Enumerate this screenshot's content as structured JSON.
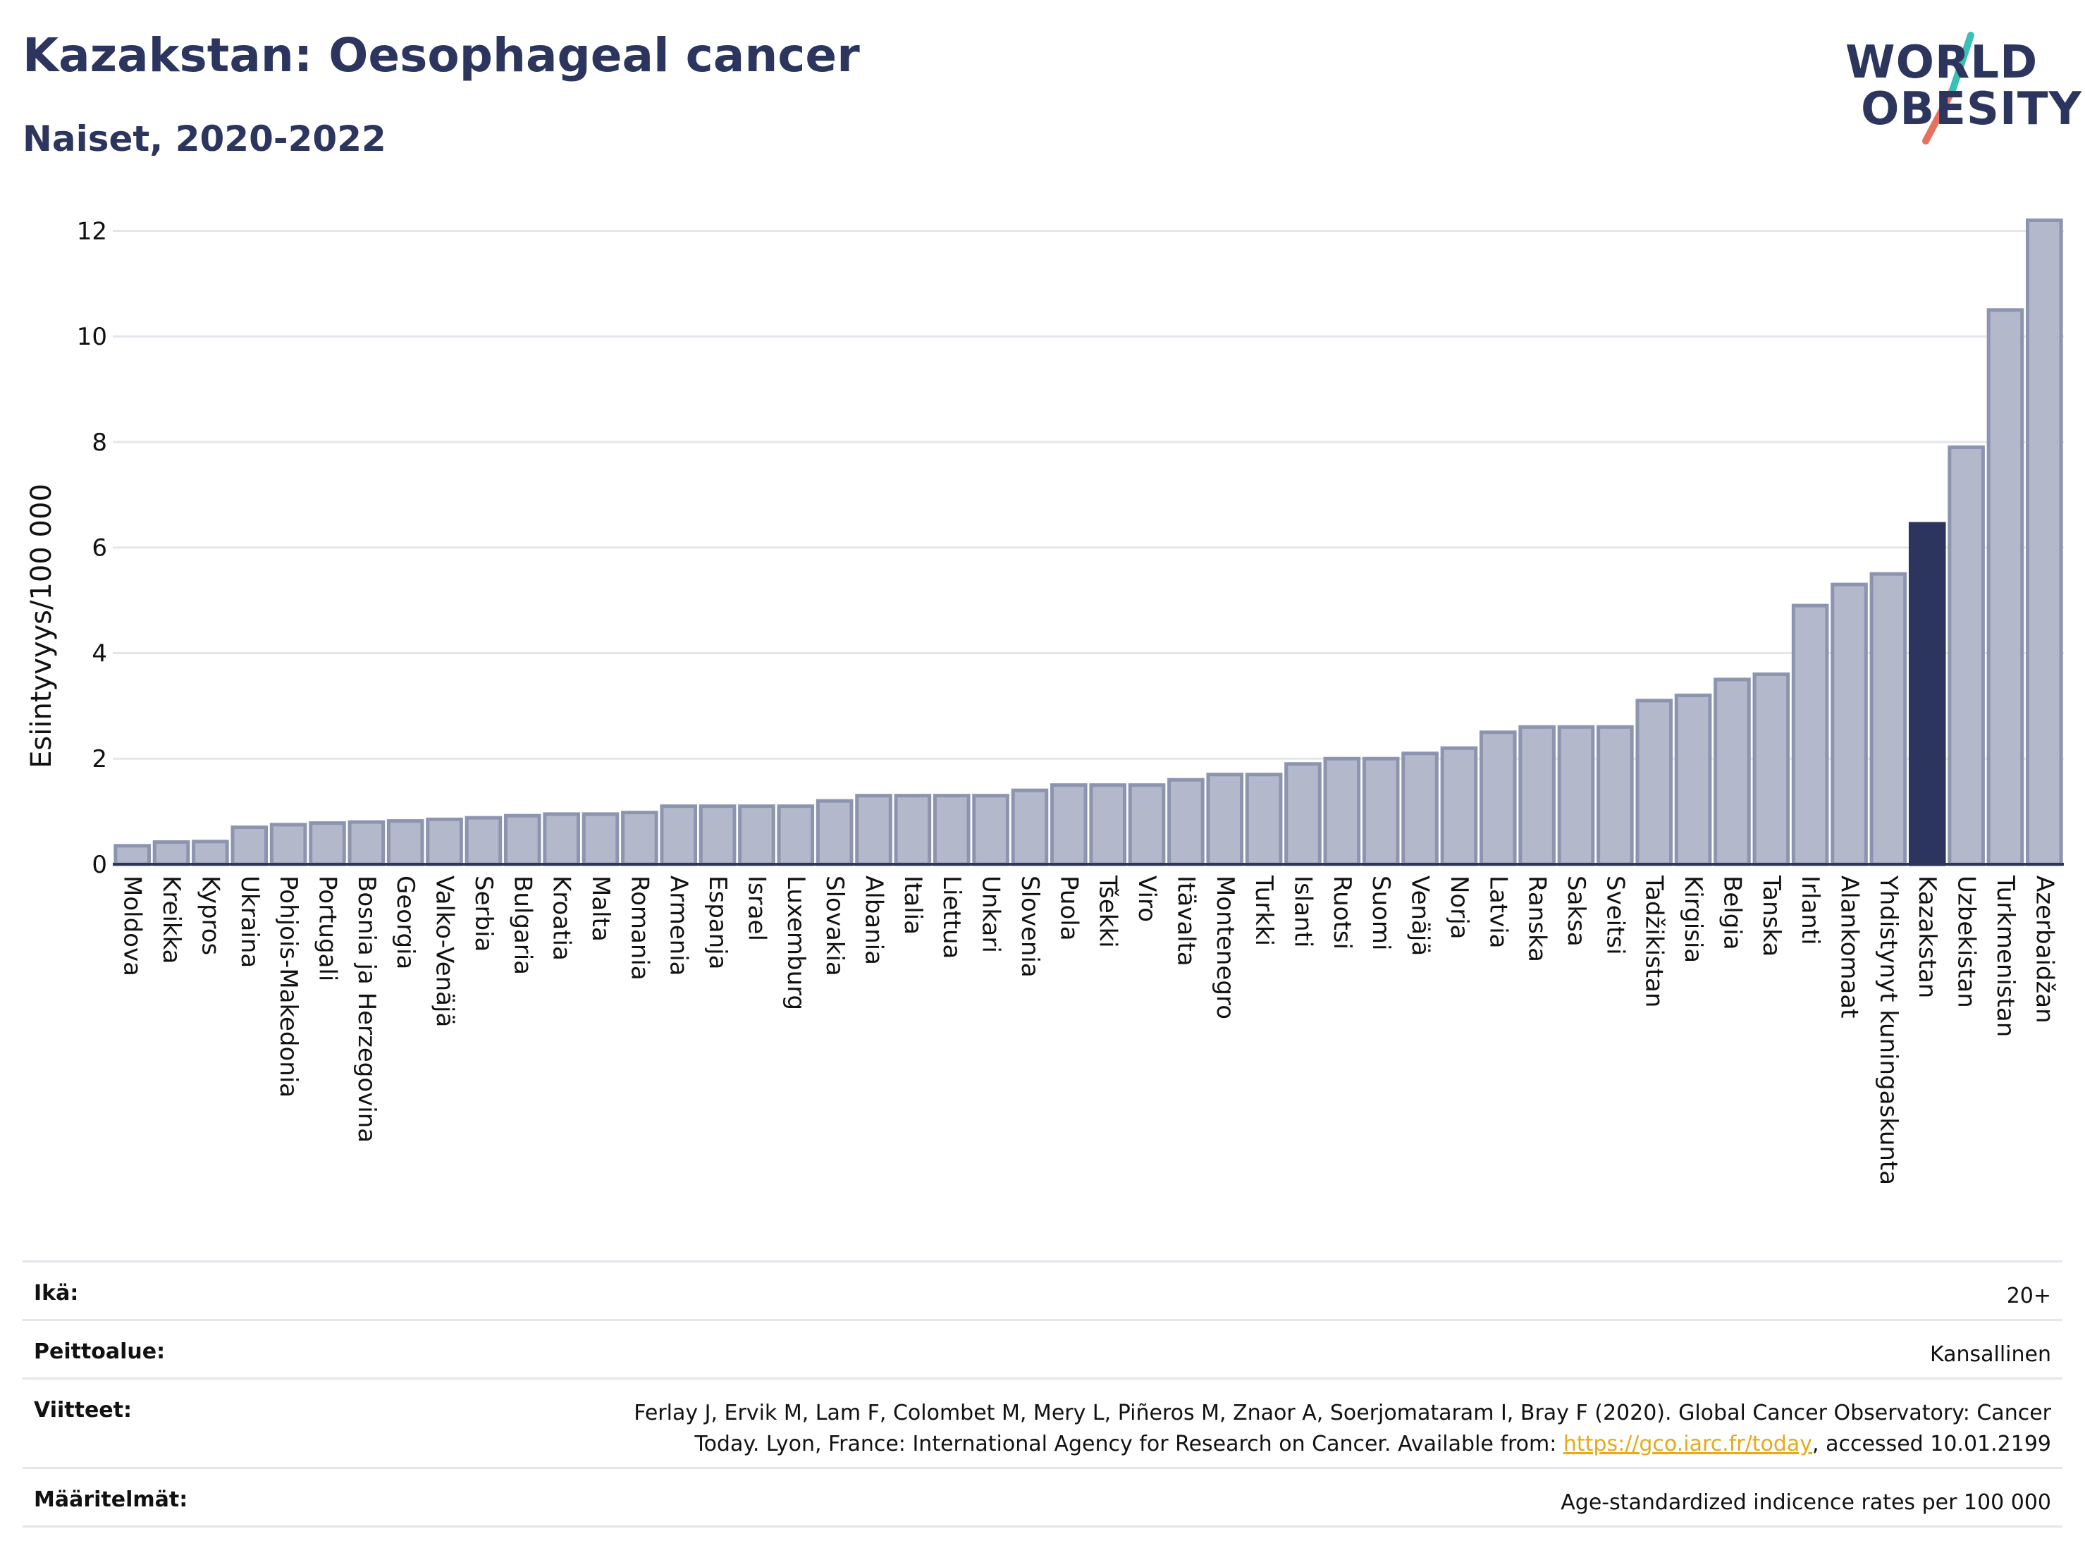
{
  "header": {
    "title": "Kazakstan: Oesophageal cancer",
    "subtitle": "Naiset, 2020-2022",
    "logo_line1": "WORLD",
    "logo_line2": "OBESITY"
  },
  "chart_data": {
    "type": "bar",
    "ylabel": "Esiintyvyys/100 000",
    "xlabel": "",
    "ylim": [
      0,
      12.5
    ],
    "yticks": [
      0,
      2,
      4,
      6,
      8,
      10,
      12
    ],
    "grid": true,
    "highlight": "Kazakstan",
    "colors": {
      "bar": "#b3b8ca",
      "bar_edge": "#8d94af",
      "highlight": "#2c355e",
      "grid": "#e4e6ee",
      "axis": "#2c355e"
    },
    "categories": [
      "Moldova",
      "Kreikka",
      "Kypros",
      "Ukraina",
      "Pohjois-Makedonia",
      "Portugali",
      "Bosnia ja Herzegovina",
      "Georgia",
      "Valko-Venäjä",
      "Serbia",
      "Bulgaria",
      "Kroatia",
      "Malta",
      "Romania",
      "Armenia",
      "Espanja",
      "Israel",
      "Luxemburg",
      "Slovakia",
      "Albania",
      "Italia",
      "Liettua",
      "Unkari",
      "Slovenia",
      "Puola",
      "Tšekki",
      "Viro",
      "Itävalta",
      "Montenegro",
      "Turkki",
      "Islanti",
      "Ruotsi",
      "Suomi",
      "Venäjä",
      "Norja",
      "Latvia",
      "Ranska",
      "Saksa",
      "Sveitsi",
      "Tadžikistan",
      "Kirgisia",
      "Belgia",
      "Tanska",
      "Irlanti",
      "Alankomaat",
      "Yhdistynyt kuningaskunta",
      "Kazakstan",
      "Uzbekistan",
      "Turkmenistan",
      "Azerbaidžan"
    ],
    "values": [
      0.35,
      0.42,
      0.43,
      0.7,
      0.75,
      0.78,
      0.8,
      0.82,
      0.85,
      0.88,
      0.92,
      0.95,
      0.95,
      0.98,
      1.1,
      1.1,
      1.1,
      1.1,
      1.2,
      1.3,
      1.3,
      1.3,
      1.3,
      1.4,
      1.5,
      1.5,
      1.5,
      1.6,
      1.7,
      1.7,
      1.9,
      2.0,
      2.0,
      2.1,
      2.2,
      2.5,
      2.6,
      2.6,
      2.6,
      3.1,
      3.2,
      3.5,
      3.6,
      4.9,
      5.3,
      5.5,
      6.45,
      7.9,
      10.5,
      12.2
    ]
  },
  "footer": {
    "rows": [
      {
        "label": "Ikä:",
        "value": "20+"
      },
      {
        "label": "Peittoalue:",
        "value": "Kansallinen"
      },
      {
        "label": "Viitteet:",
        "value_line1": "Ferlay J, Ervik M, Lam F, Colombet M, Mery L, Piñeros M, Znaor A, Soerjomataram I, Bray F (2020). Global Cancer Observatory: Cancer",
        "value_pre": "Today. Lyon, France: International Agency for Research on Cancer. Available from: ",
        "link": "https://gco.iarc.fr/today",
        "value_post": ", accessed 10.01.2199"
      },
      {
        "label": "Määritelmät:",
        "value": "Age-standardized indicence rates per 100 000"
      }
    ]
  }
}
